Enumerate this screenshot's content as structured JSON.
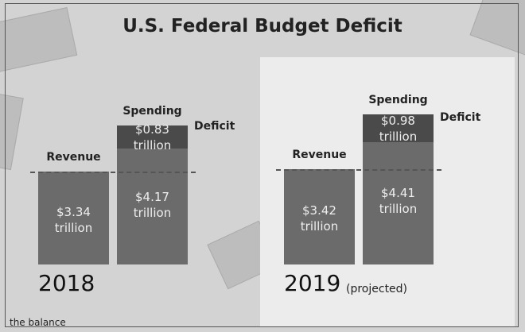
{
  "title": "U.S. Federal Budget Deficit",
  "brand": "the balance",
  "chart_data": [
    {
      "type": "bar",
      "title": "2018",
      "categories": [
        "Revenue",
        "Spending"
      ],
      "series": [
        {
          "color": "#6b6b6b",
          "values": [
            3.34,
            4.17
          ],
          "value_labels": [
            "$3.34 trillion",
            "$4.17 trillion"
          ]
        },
        {
          "name": "Deficit",
          "color": "#4a4a4a",
          "values": [
            null,
            0.83
          ],
          "value_labels": [
            null,
            "$0.83 trillion"
          ]
        }
      ]
    },
    {
      "type": "bar",
      "title": "2019",
      "subtitle": "(projected)",
      "categories": [
        "Revenue",
        "Spending"
      ],
      "series": [
        {
          "color": "#6b6b6b",
          "values": [
            3.42,
            4.41
          ],
          "value_labels": [
            "$3.42 trillion",
            "$4.41 trillion"
          ]
        },
        {
          "name": "Deficit",
          "color": "#4a4a4a",
          "values": [
            null,
            0.98
          ],
          "value_labels": [
            null,
            "$0.98 trillion"
          ]
        }
      ]
    }
  ]
}
